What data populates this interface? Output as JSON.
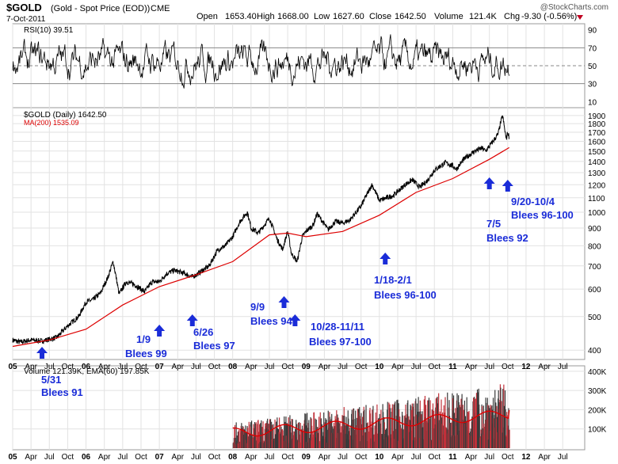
{
  "header": {
    "symbol": "$GOLD",
    "description": "(Gold - Spot Price (EOD))",
    "exchange": "CME",
    "date": "7-Oct-2011",
    "open_label": "Open",
    "open": "1653.40",
    "high_label": "High",
    "high": "1668.00",
    "low_label": "Low",
    "low": "1627.60",
    "close_label": "Close",
    "close": "1642.50",
    "volume_label": "Volume",
    "volume": "121.4K",
    "chg_label": "Chg",
    "chg": "-9.30 (-0.56%)",
    "watermark": "@StockCharts.com"
  },
  "chart_data": [
    {
      "type": "line",
      "panel": "rsi",
      "title": "RSI(10) 39.51",
      "series": [
        {
          "name": "RSI(10)",
          "last": 39.51
        }
      ],
      "yticks": [
        10,
        30,
        50,
        70,
        90
      ],
      "ylim": [
        5,
        95
      ],
      "reference_lines": [
        30,
        50,
        70
      ]
    },
    {
      "type": "line",
      "panel": "price",
      "title": "$GOLD (Daily) 1642.50",
      "legend": [
        "$GOLD (Daily) 1642.50",
        "MA(200) 1535.09"
      ],
      "yscale": "log",
      "ylim": [
        380,
        1980
      ],
      "yticks": [
        400,
        500,
        600,
        700,
        800,
        900,
        1000,
        1100,
        1200,
        1300,
        1400,
        1500,
        1600,
        1700,
        1800,
        1900
      ],
      "xlim": [
        2005.0,
        2012.8
      ],
      "series": [
        {
          "name": "$GOLD (Daily)",
          "color": "#000000",
          "points": [
            [
              2005.0,
              428
            ],
            [
              2005.1,
              422
            ],
            [
              2005.25,
              428
            ],
            [
              2005.4,
              425
            ],
            [
              2005.5,
              430
            ],
            [
              2005.6,
              435
            ],
            [
              2005.75,
              470
            ],
            [
              2005.9,
              500
            ],
            [
              2006.0,
              550
            ],
            [
              2006.1,
              560
            ],
            [
              2006.2,
              585
            ],
            [
              2006.3,
              650
            ],
            [
              2006.37,
              720
            ],
            [
              2006.45,
              580
            ],
            [
              2006.55,
              630
            ],
            [
              2006.65,
              620
            ],
            [
              2006.8,
              590
            ],
            [
              2006.9,
              630
            ],
            [
              2007.0,
              630
            ],
            [
              2007.1,
              665
            ],
            [
              2007.2,
              680
            ],
            [
              2007.35,
              665
            ],
            [
              2007.45,
              650
            ],
            [
              2007.55,
              670
            ],
            [
              2007.68,
              700
            ],
            [
              2007.8,
              780
            ],
            [
              2007.9,
              800
            ],
            [
              2008.0,
              850
            ],
            [
              2008.1,
              940
            ],
            [
              2008.2,
              1000
            ],
            [
              2008.25,
              900
            ],
            [
              2008.35,
              870
            ],
            [
              2008.5,
              960
            ],
            [
              2008.6,
              840
            ],
            [
              2008.68,
              780
            ],
            [
              2008.75,
              880
            ],
            [
              2008.8,
              760
            ],
            [
              2008.88,
              720
            ],
            [
              2008.95,
              850
            ],
            [
              2009.0,
              880
            ],
            [
              2009.1,
              920
            ],
            [
              2009.15,
              990
            ],
            [
              2009.3,
              890
            ],
            [
              2009.4,
              940
            ],
            [
              2009.5,
              930
            ],
            [
              2009.6,
              950
            ],
            [
              2009.75,
              1040
            ],
            [
              2009.9,
              1200
            ],
            [
              2010.0,
              1080
            ],
            [
              2010.1,
              1100
            ],
            [
              2010.2,
              1120
            ],
            [
              2010.35,
              1200
            ],
            [
              2010.45,
              1240
            ],
            [
              2010.55,
              1180
            ],
            [
              2010.65,
              1230
            ],
            [
              2010.75,
              1320
            ],
            [
              2010.9,
              1390
            ],
            [
              2011.0,
              1360
            ],
            [
              2011.05,
              1330
            ],
            [
              2011.15,
              1420
            ],
            [
              2011.3,
              1500
            ],
            [
              2011.4,
              1530
            ],
            [
              2011.45,
              1500
            ],
            [
              2011.55,
              1600
            ],
            [
              2011.62,
              1680
            ],
            [
              2011.65,
              1800
            ],
            [
              2011.68,
              1900
            ],
            [
              2011.7,
              1780
            ],
            [
              2011.73,
              1620
            ],
            [
              2011.75,
              1700
            ],
            [
              2011.77,
              1642
            ]
          ]
        },
        {
          "name": "MA(200)",
          "color": "#dd0000",
          "points": [
            [
              2005.0,
              410
            ],
            [
              2005.5,
              428
            ],
            [
              2006.0,
              460
            ],
            [
              2006.5,
              540
            ],
            [
              2007.0,
              610
            ],
            [
              2007.5,
              660
            ],
            [
              2008.0,
              720
            ],
            [
              2008.5,
              860
            ],
            [
              2008.75,
              870
            ],
            [
              2009.0,
              850
            ],
            [
              2009.5,
              880
            ],
            [
              2010.0,
              980
            ],
            [
              2010.5,
              1140
            ],
            [
              2011.0,
              1250
            ],
            [
              2011.5,
              1420
            ],
            [
              2011.77,
              1535
            ]
          ]
        }
      ],
      "annotations": [
        {
          "text": "5/31",
          "x": 2005.4
        },
        {
          "text": "Blees 91",
          "x": 2005.4
        },
        {
          "text": "1/9",
          "x": 2007.0
        },
        {
          "text": "Blees 99",
          "x": 2007.0
        },
        {
          "text": "6/26",
          "x": 2007.45
        },
        {
          "text": "Blees 97",
          "x": 2007.45
        },
        {
          "text": "9/9",
          "x": 2008.7
        },
        {
          "text": "Blees 94",
          "x": 2008.7
        },
        {
          "text": "10/28-11/11",
          "x": 2008.85
        },
        {
          "text": "Blees 97-100",
          "x": 2008.85
        },
        {
          "text": "1/18-2/1",
          "x": 2010.08
        },
        {
          "text": "Blees 96-100",
          "x": 2010.08
        },
        {
          "text": "7/5",
          "x": 2011.5
        },
        {
          "text": "Blees 92",
          "x": 2011.5
        },
        {
          "text": "9/20-10/4",
          "x": 2011.75
        },
        {
          "text": "Blees 96-100",
          "x": 2011.75
        }
      ]
    },
    {
      "type": "bar",
      "panel": "volume",
      "title": "Volume 121.39K, EMA(60) 197.85K",
      "yticks": [
        "100K",
        "200K",
        "300K",
        "400K"
      ],
      "ylim": [
        0,
        420000
      ],
      "series": [
        {
          "name": "EMA(60)",
          "last": 197850
        },
        {
          "name": "Volume",
          "last": 121390
        }
      ]
    }
  ],
  "x_axis": {
    "labels": [
      "05",
      "Apr",
      "Jul",
      "Oct",
      "06",
      "Apr",
      "Jul",
      "Oct",
      "07",
      "Apr",
      "Jul",
      "Oct",
      "08",
      "Apr",
      "Jul",
      "Oct",
      "09",
      "Apr",
      "Jul",
      "Oct",
      "10",
      "Apr",
      "Jul",
      "Oct",
      "11",
      "Apr",
      "Jul",
      "Oct",
      "12",
      "Apr",
      "Jul"
    ],
    "positions": [
      2005.0,
      2005.25,
      2005.5,
      2005.75,
      2006.0,
      2006.25,
      2006.5,
      2006.75,
      2007.0,
      2007.25,
      2007.5,
      2007.75,
      2008.0,
      2008.25,
      2008.5,
      2008.75,
      2009.0,
      2009.25,
      2009.5,
      2009.75,
      2010.0,
      2010.25,
      2010.5,
      2010.75,
      2011.0,
      2011.25,
      2011.5,
      2011.75,
      2012.0,
      2012.25,
      2012.5
    ]
  },
  "colors": {
    "price": "#000000",
    "ma": "#dd0000",
    "rsi": "#000000",
    "volume_up": "#c0313a",
    "volume_dn": "#3a3a3a",
    "ema": "#dd0000",
    "annotation": "#1a2cd8",
    "arrow": "#1a2cd8"
  }
}
